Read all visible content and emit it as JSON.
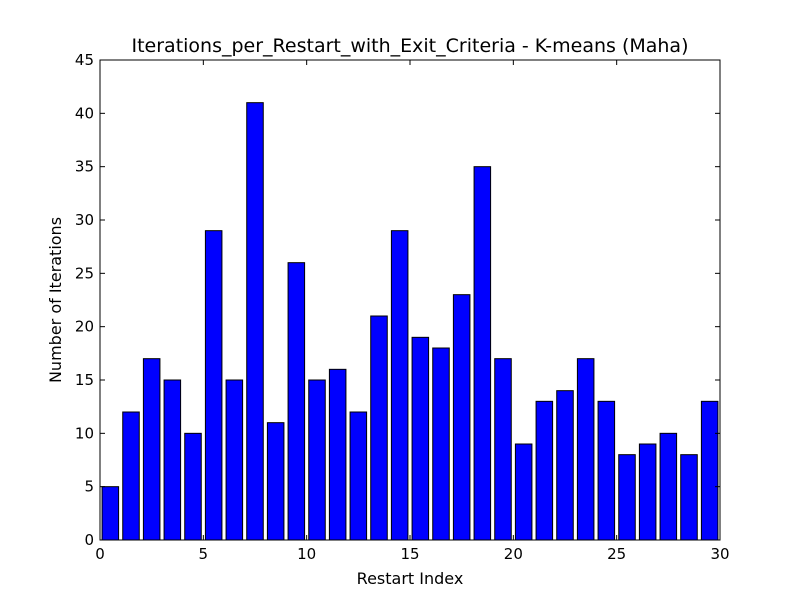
{
  "chart_data": {
    "type": "bar",
    "title": "Iterations_per_Restart_with_Exit_Criteria - K-means (Maha)",
    "xlabel": "Restart Index",
    "ylabel": "Number of Iterations",
    "x": [
      0,
      1,
      2,
      3,
      4,
      5,
      6,
      7,
      8,
      9,
      10,
      11,
      12,
      13,
      14,
      15,
      16,
      17,
      18,
      19,
      20,
      21,
      22,
      23,
      24,
      25,
      26,
      27,
      28,
      29
    ],
    "values": [
      5,
      12,
      17,
      15,
      10,
      29,
      15,
      41,
      11,
      26,
      15,
      16,
      12,
      21,
      29,
      19,
      18,
      23,
      35,
      17,
      9,
      13,
      14,
      17,
      13,
      8,
      9,
      10,
      8,
      13
    ],
    "xlim": [
      0,
      30
    ],
    "ylim": [
      0,
      45
    ],
    "xticks": [
      0,
      5,
      10,
      15,
      20,
      25,
      30
    ],
    "yticks": [
      0,
      5,
      10,
      15,
      20,
      25,
      30,
      35,
      40,
      45
    ],
    "bar_color": "#0000ff",
    "grid": false
  }
}
